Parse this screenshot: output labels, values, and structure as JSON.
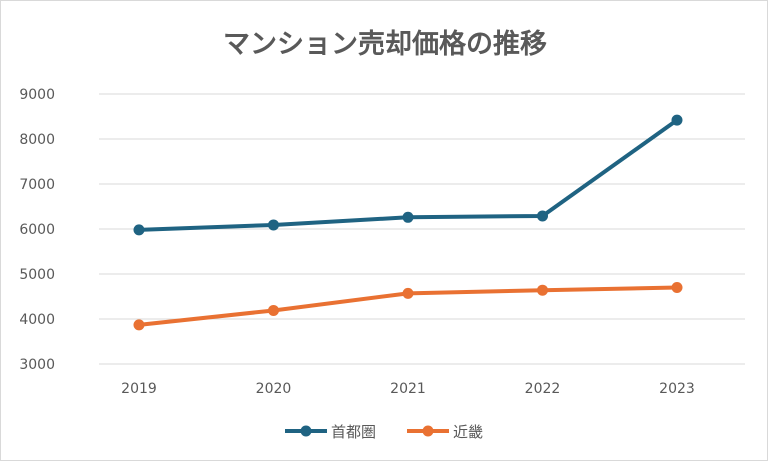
{
  "chart_data": {
    "type": "line",
    "title": "マンション売却価格の推移",
    "categories": [
      "2019",
      "2020",
      "2021",
      "2022",
      "2023"
    ],
    "series": [
      {
        "name": "首都圏",
        "color": "#1f6382",
        "values": [
          5980,
          6090,
          6260,
          6290,
          8420
        ]
      },
      {
        "name": "近畿",
        "color": "#e97132",
        "values": [
          3870,
          4190,
          4570,
          4640,
          4700
        ]
      }
    ],
    "ylim": [
      3000,
      9000
    ],
    "yticks": [
      "3000",
      "4000",
      "5000",
      "6000",
      "7000",
      "8000",
      "9000"
    ],
    "grid": true,
    "legend": "bottom"
  }
}
